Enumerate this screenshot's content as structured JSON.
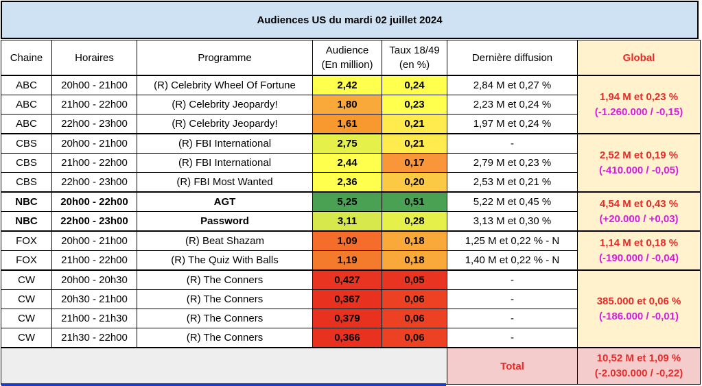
{
  "title": "Audiences US du mardi 02 juillet 2024",
  "headers": {
    "chaine": "Chaine",
    "horaires": "Horaires",
    "programme": "Programme",
    "audience_l1": "Audience",
    "audience_l2": "(En million)",
    "taux_l1": "Taux 18/49",
    "taux_l2": "(en %)",
    "derniere": "Dernière diffusion",
    "global": "Global"
  },
  "rows": [
    {
      "chaine": "ABC",
      "horaires": "20h00 - 21h00",
      "programme": "(R) Celebrity Wheel Of Fortune",
      "audience": "2,42",
      "taux": "0,24",
      "derniere": "2,84 M et 0,27 %",
      "aud_color": "#ffff4d",
      "taux_color": "#ffff4d"
    },
    {
      "chaine": "ABC",
      "horaires": "21h00 - 22h00",
      "programme": "(R) Celebrity Jeopardy!",
      "audience": "1,80",
      "taux": "0,23",
      "derniere": "2,23 M et 0,24 %",
      "aud_color": "#f9a83a",
      "taux_color": "#ffff4d"
    },
    {
      "chaine": "ABC",
      "horaires": "22h00 - 23h00",
      "programme": "(R) Celebrity Jeopardy!",
      "audience": "1,61",
      "taux": "0,21",
      "derniere": "1,97 M et 0,24 %",
      "aud_color": "#f7992f",
      "taux_color": "#ffeb4d"
    },
    {
      "chaine": "CBS",
      "horaires": "20h00 - 21h00",
      "programme": "(R) FBI International",
      "audience": "2,75",
      "taux": "0,21",
      "derniere": "-",
      "aud_color": "#e6f04a",
      "taux_color": "#ffeb4d"
    },
    {
      "chaine": "CBS",
      "horaires": "21h00 - 22h00",
      "programme": "(R) FBI International",
      "audience": "2,44",
      "taux": "0,17",
      "derniere": "2,79 M et 0,23 %",
      "aud_color": "#ffff4d",
      "taux_color": "#f9963a"
    },
    {
      "chaine": "CBS",
      "horaires": "22h00 - 23h00",
      "programme": "(R) FBI Most Wanted",
      "audience": "2,36",
      "taux": "0,20",
      "derniere": "2,53 M et 0,21 %",
      "aud_color": "#ffff4d",
      "taux_color": "#fbc944"
    },
    {
      "chaine": "NBC",
      "horaires": "20h00 - 22h00",
      "programme": "AGT",
      "audience": "5,25",
      "taux": "0,51",
      "derniere": "5,22 M et 0,45 %",
      "aud_color": "#4ba153",
      "taux_color": "#4ba153"
    },
    {
      "chaine": "NBC",
      "horaires": "22h00 - 23h00",
      "programme": "Password",
      "audience": "3,11",
      "taux": "0,28",
      "derniere": "3,13 M et 0,30 %",
      "aud_color": "#d6e84c",
      "taux_color": "#e6f04a"
    },
    {
      "chaine": "FOX",
      "horaires": "20h00 - 21h00",
      "programme": "(R) Beat Shazam",
      "audience": "1,09",
      "taux": "0,18",
      "derniere": "1,25 M et 0,22 % - N",
      "aud_color": "#f46d2a",
      "taux_color": "#f9a83a"
    },
    {
      "chaine": "FOX",
      "horaires": "21h00 - 22h00",
      "programme": "(R) The Quiz With Balls",
      "audience": "1,19",
      "taux": "0,18",
      "derniere": "1,40 M et 0,22 % - N",
      "aud_color": "#f47a2c",
      "taux_color": "#f9a83a"
    },
    {
      "chaine": "CW",
      "horaires": "20h00 - 20h30",
      "programme": "(R) The Conners",
      "audience": "0,427",
      "taux": "0,05",
      "derniere": "-",
      "aud_color": "#ea3422",
      "taux_color": "#ea3422"
    },
    {
      "chaine": "CW",
      "horaires": "20h30 - 21h00",
      "programme": "(R) The Conners",
      "audience": "0,367",
      "taux": "0,06",
      "derniere": "-",
      "aud_color": "#e8321f",
      "taux_color": "#ec4122"
    },
    {
      "chaine": "CW",
      "horaires": "21h00 - 21h30",
      "programme": "(R) The Conners",
      "audience": "0,379",
      "taux": "0,06",
      "derniere": "-",
      "aud_color": "#e8321f",
      "taux_color": "#ec4122"
    },
    {
      "chaine": "CW",
      "horaires": "21h30 - 22h00",
      "programme": "(R) The Conners",
      "audience": "0,366",
      "taux": "0,06",
      "derniere": "-",
      "aud_color": "#e8321f",
      "taux_color": "#ec4122"
    }
  ],
  "global": {
    "abc": {
      "main": "1,94 M et 0,23 %",
      "delta": "(-1.260.000 / -0,15)"
    },
    "cbs": {
      "main": "2,52 M et 0,19 %",
      "delta": "(-410.000 / -0,05)"
    },
    "nbc": {
      "main": "4,54 M et 0,43 %",
      "delta": "(+20.000 / +0,03)"
    },
    "fox": {
      "main": "1,14 M et 0,18 %",
      "delta": "(-190.000 / -0,04)"
    },
    "cw": {
      "main": "385.000 et 0,06 %",
      "delta": "(-186.000 / -0,01)"
    }
  },
  "total": {
    "label": "Total",
    "main": "10,52 M et 1,09 %",
    "delta": "(-2.030.000 / -0,22)"
  }
}
